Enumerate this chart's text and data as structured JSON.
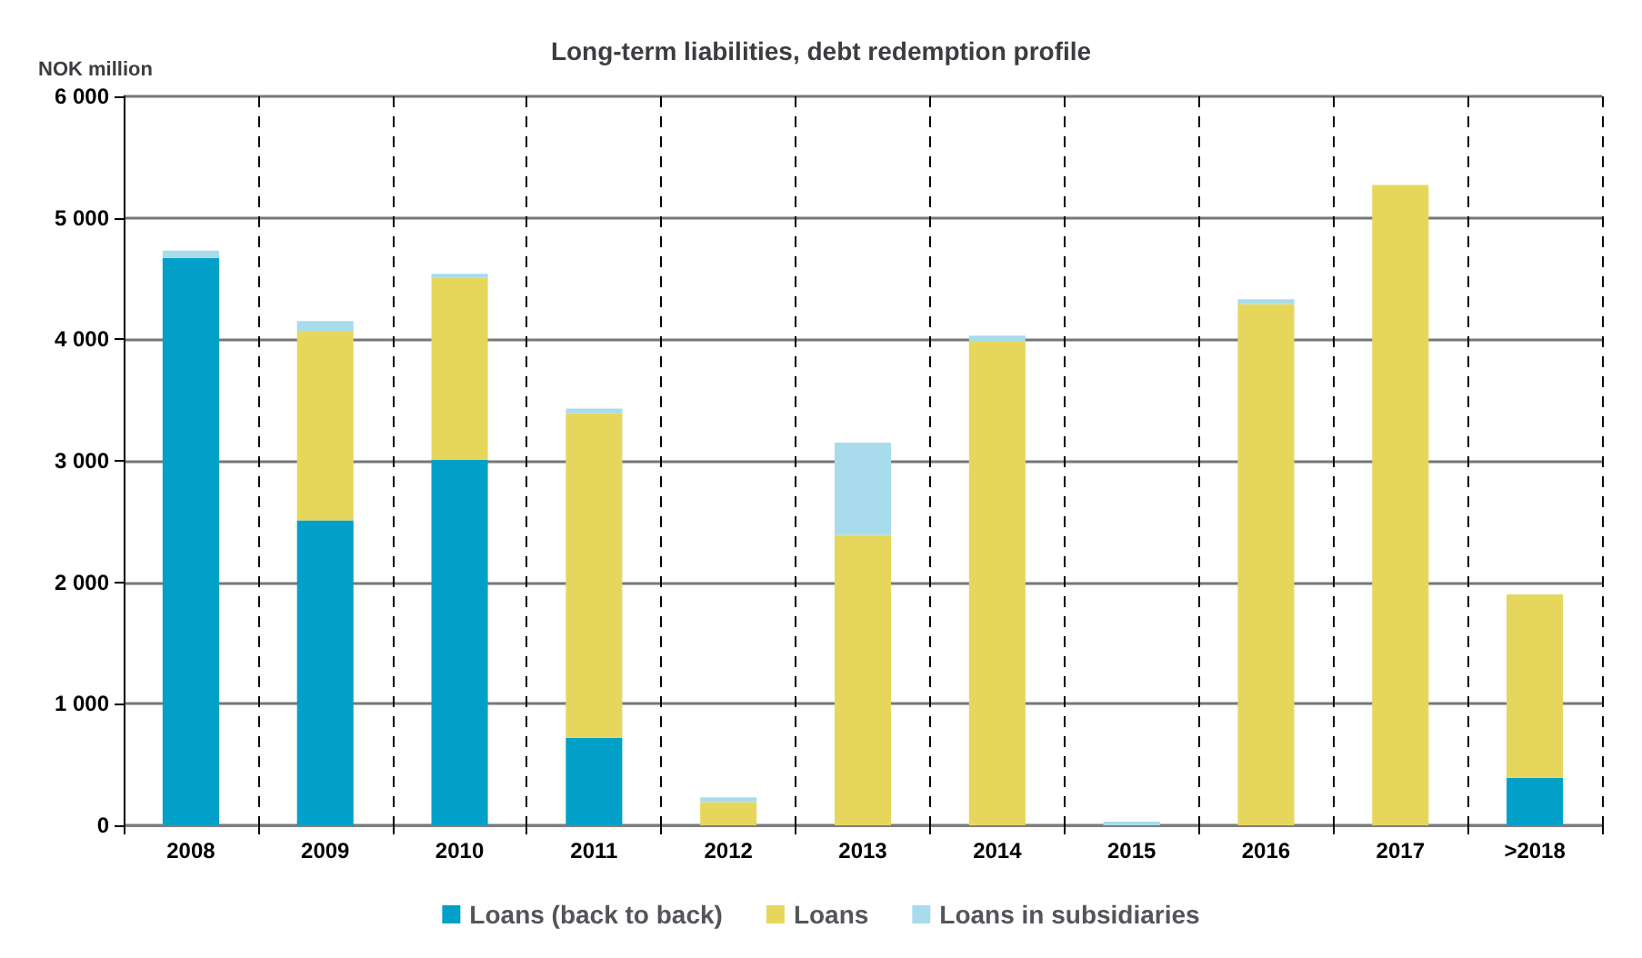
{
  "chart_data": {
    "type": "bar",
    "title": "Long-term liabilities, debt redemption profile",
    "ylabel": "NOK million",
    "categories": [
      "2008",
      "2009",
      "2010",
      "2011",
      "2012",
      "2013",
      "2014",
      "2015",
      "2016",
      "2017",
      ">2018"
    ],
    "stacked": true,
    "ylim": [
      0,
      6000
    ],
    "yticks": [
      {
        "value": 0,
        "label": "0"
      },
      {
        "value": 1000,
        "label": "1 000"
      },
      {
        "value": 2000,
        "label": "2 000"
      },
      {
        "value": 3000,
        "label": "3 000"
      },
      {
        "value": 4000,
        "label": "4 000"
      },
      {
        "value": 5000,
        "label": "5 000"
      },
      {
        "value": 6000,
        "label": "6 000"
      }
    ],
    "grid": true,
    "legend": "bottom",
    "series": [
      {
        "name": "Loans (back to back)",
        "color": "#00a0c8",
        "values": [
          4670,
          2510,
          3010,
          720,
          0,
          0,
          0,
          0,
          0,
          0,
          390
        ]
      },
      {
        "name": "Loans",
        "color": "#e6d75c",
        "values": [
          0,
          1560,
          1500,
          2670,
          190,
          2390,
          3980,
          0,
          4290,
          5270,
          1510
        ]
      },
      {
        "name": "Loans in subsidiaries",
        "color": "#a8dcec",
        "values": [
          60,
          80,
          30,
          40,
          40,
          760,
          50,
          30,
          40,
          0,
          0
        ]
      }
    ]
  }
}
